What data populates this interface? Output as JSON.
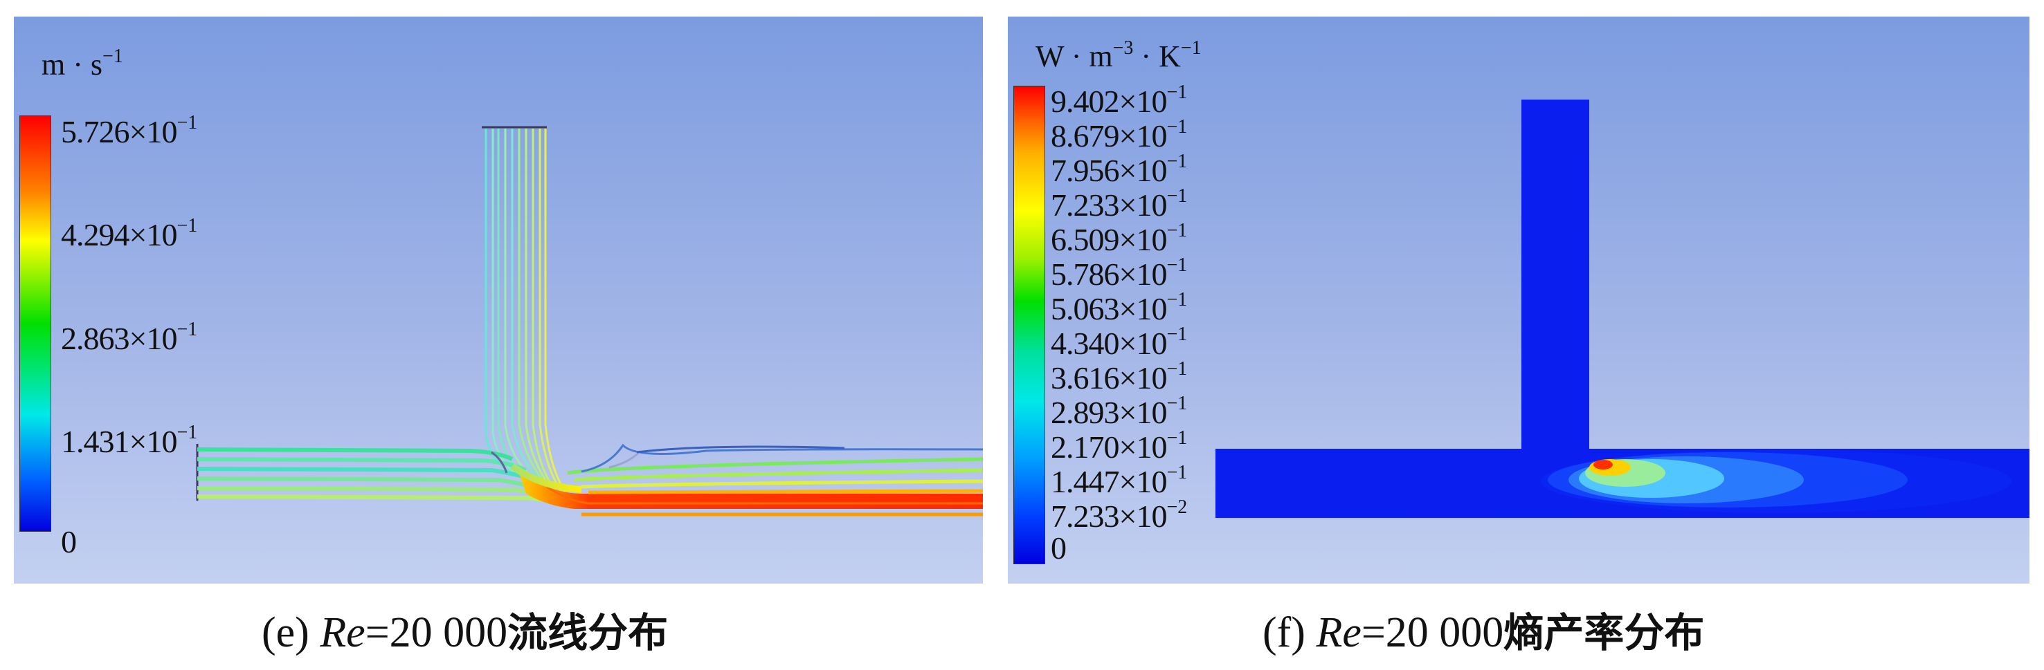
{
  "panel_e": {
    "unit_label": "m · s",
    "unit_exp": "−1",
    "colorbar_ticks": [
      {
        "mantissa": "5.726×10",
        "exp": "−1"
      },
      {
        "mantissa": "4.294×10",
        "exp": "−1"
      },
      {
        "mantissa": "2.863×10",
        "exp": "−1"
      },
      {
        "mantissa": "1.431×10",
        "exp": "−1"
      },
      {
        "mantissa": "0",
        "exp": ""
      }
    ],
    "caption_prefix": "(e) ",
    "caption_re": "Re",
    "caption_mid": "=20 000",
    "caption_cn": "流线分布"
  },
  "panel_f": {
    "unit_w": "W · m",
    "unit_exp1": "−3",
    "unit_k": " · K",
    "unit_exp2": "−1",
    "colorbar_ticks": [
      {
        "mantissa": "9.402×10",
        "exp": "−1"
      },
      {
        "mantissa": "8.679×10",
        "exp": "−1"
      },
      {
        "mantissa": "7.956×10",
        "exp": "−1"
      },
      {
        "mantissa": "7.233×10",
        "exp": "−1"
      },
      {
        "mantissa": "6.509×10",
        "exp": "−1"
      },
      {
        "mantissa": "5.786×10",
        "exp": "−1"
      },
      {
        "mantissa": "5.063×10",
        "exp": "−1"
      },
      {
        "mantissa": "4.340×10",
        "exp": "−1"
      },
      {
        "mantissa": "3.616×10",
        "exp": "−1"
      },
      {
        "mantissa": "2.893×10",
        "exp": "−1"
      },
      {
        "mantissa": "2.170×10",
        "exp": "−1"
      },
      {
        "mantissa": "1.447×10",
        "exp": "−1"
      },
      {
        "mantissa": "7.233×10",
        "exp": "−2"
      },
      {
        "mantissa": "0",
        "exp": ""
      }
    ],
    "caption_prefix": "(f) ",
    "caption_re": "Re",
    "caption_mid": "=20 000",
    "caption_cn": "熵产率分布"
  },
  "colors": {
    "colormap": [
      "#ff0000",
      "#ff7a00",
      "#ffff00",
      "#00e000",
      "#00e8e8",
      "#0000ff"
    ],
    "pipe_fill": "#0a1fef"
  }
}
